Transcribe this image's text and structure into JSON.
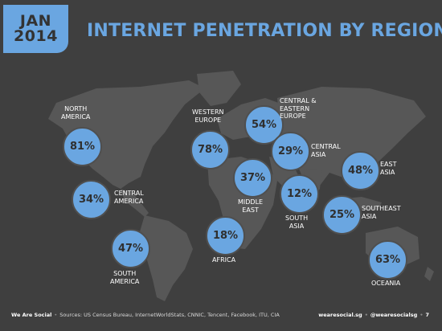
{
  "header": {
    "month": "JAN",
    "year": "2014",
    "title": "INTERNET PENETRATION BY REGION"
  },
  "regions": {
    "north_america": {
      "label_line1": "NORTH",
      "label_line2": "AMERICA",
      "value": "81%"
    },
    "central_america": {
      "label_line1": "CENTRAL",
      "label_line2": "AMERICA",
      "value": "34%"
    },
    "south_america": {
      "label_line1": "SOUTH",
      "label_line2": "AMERICA",
      "value": "47%"
    },
    "western_europe": {
      "label_line1": "WESTERN",
      "label_line2": "EUROPE",
      "value": "78%"
    },
    "central_eastern_europe": {
      "label_line1": "CENTRAL &",
      "label_line2": "EASTERN",
      "label_line3": "EUROPE",
      "value": "54%"
    },
    "central_asia": {
      "label_line1": "CENTRAL",
      "label_line2": "ASIA",
      "value": "29%"
    },
    "middle_east": {
      "label_line1": "MIDDLE",
      "label_line2": "EAST",
      "value": "37%"
    },
    "africa": {
      "label_line1": "AFRICA",
      "value": "18%"
    },
    "south_asia": {
      "label_line1": "SOUTH",
      "label_line2": "ASIA",
      "value": "12%"
    },
    "east_asia": {
      "label_line1": "EAST",
      "label_line2": "ASIA",
      "value": "48%"
    },
    "southeast_asia": {
      "label_line1": "SOUTHEAST",
      "label_line2": "ASIA",
      "value": "25%"
    },
    "oceania": {
      "label_line1": "OCEANIA",
      "value": "63%"
    }
  },
  "footer": {
    "brand": "We Are Social",
    "sources": "Sources: US Census Bureau, InternetWorldStats, CNNIC, Tencent, Facebook, ITU, CIA",
    "site": "wearesocial.sg",
    "handle": "@wearesocialsg",
    "page": "7"
  },
  "colors": {
    "background": "#3f3f3f",
    "accent": "#6aa6e1",
    "continent": "#5a5a5a"
  }
}
